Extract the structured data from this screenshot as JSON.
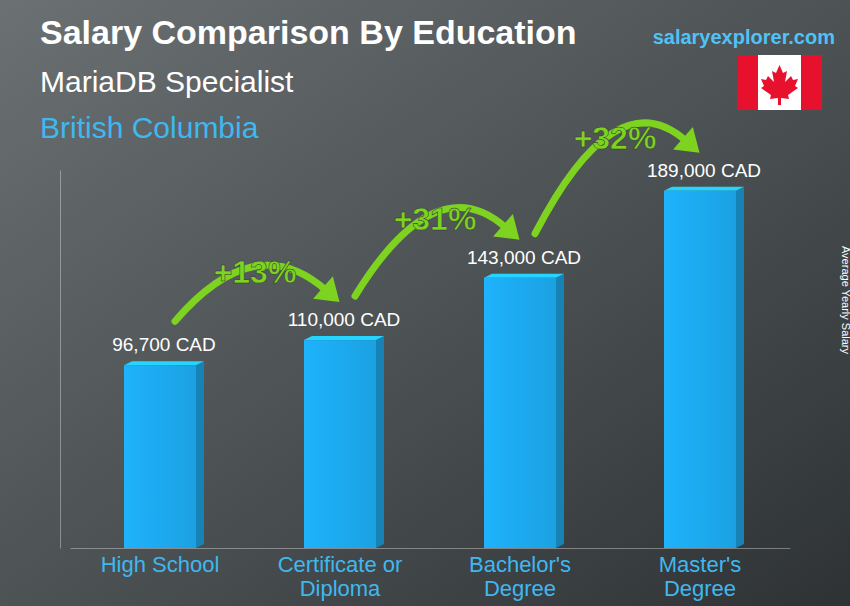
{
  "chart_data": {
    "type": "bar",
    "title": "Salary Comparison By Education",
    "subtitle": [
      "MariaDB Specialist",
      "British Columbia"
    ],
    "source": "salaryexplorer.com",
    "y_label": "Average Yearly Salary",
    "categories": [
      "High School",
      "Certificate or Diploma",
      "Bachelor's Degree",
      "Master's Degree"
    ],
    "values": [
      96700,
      110000,
      143000,
      189000
    ],
    "value_labels": [
      "96,700 CAD",
      "110,000 CAD",
      "143,000 CAD",
      "189,000 CAD"
    ],
    "annotations": [
      "+13%",
      "+31%",
      "+32%"
    ],
    "color": "#1ba1e2",
    "ylim": [
      0,
      200000
    ],
    "data_labels": true,
    "tick_labels": "x",
    "grid": false
  }
}
